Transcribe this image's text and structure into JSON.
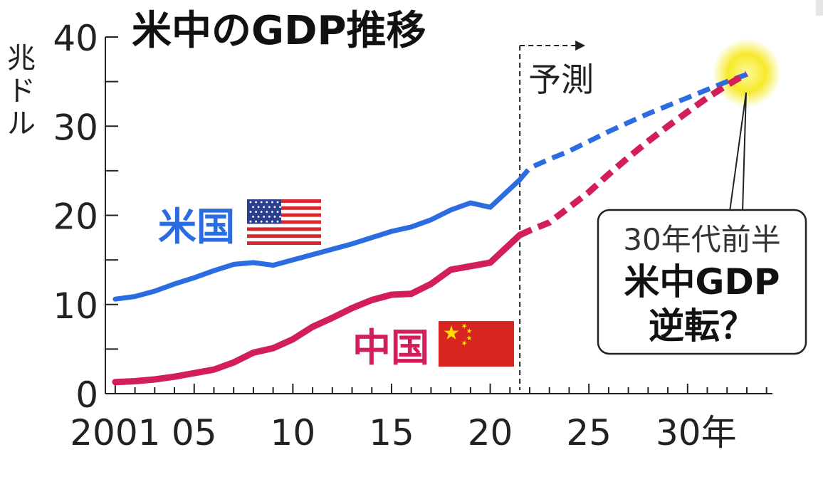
{
  "chart_data": {
    "type": "line",
    "title": "米中のGDP推移",
    "ylabel": "兆ドル",
    "xlabel": "",
    "ylim": [
      0,
      40
    ],
    "xlim": [
      2000.5,
      2034.3
    ],
    "y_ticks": [
      0,
      10,
      20,
      30,
      40
    ],
    "x_ticks": [
      {
        "value": 2001,
        "label": "2001"
      },
      {
        "value": 2005,
        "label": "05"
      },
      {
        "value": 2010,
        "label": "10"
      },
      {
        "value": 2015,
        "label": "15"
      },
      {
        "value": 2020,
        "label": "20"
      },
      {
        "value": 2025,
        "label": "25"
      },
      {
        "value": 2030,
        "label": "30年"
      }
    ],
    "forecast_start": 2021.5,
    "forecast_label": "予測",
    "series": [
      {
        "name": "米国",
        "color": "#2b6de0",
        "flag": "usa-flag",
        "x": [
          2001,
          2002,
          2003,
          2004,
          2005,
          2006,
          2007,
          2008,
          2009,
          2010,
          2011,
          2012,
          2013,
          2014,
          2015,
          2016,
          2017,
          2018,
          2019,
          2020,
          2021.5,
          2022,
          2023,
          2024,
          2025,
          2026,
          2027,
          2028,
          2029,
          2030,
          2031,
          2032,
          2033
        ],
        "y": [
          10.6,
          10.9,
          11.5,
          12.3,
          13.0,
          13.8,
          14.5,
          14.7,
          14.4,
          15.0,
          15.6,
          16.2,
          16.8,
          17.5,
          18.2,
          18.7,
          19.5,
          20.6,
          21.4,
          20.9,
          24.0,
          25.3,
          26.3,
          27.2,
          28.3,
          29.4,
          30.4,
          31.4,
          32.3,
          33.2,
          34.1,
          35.0,
          35.8
        ],
        "forecast_from_index": 20
      },
      {
        "name": "中国",
        "color": "#d21f5a",
        "flag": "china-flag",
        "x": [
          2001,
          2002,
          2003,
          2004,
          2005,
          2006,
          2007,
          2008,
          2009,
          2010,
          2011,
          2012,
          2013,
          2014,
          2015,
          2016,
          2017,
          2018,
          2019,
          2020,
          2021.5,
          2022,
          2023,
          2024,
          2025,
          2026,
          2027,
          2028,
          2029,
          2030,
          2031,
          2032,
          2033
        ],
        "y": [
          1.3,
          1.4,
          1.6,
          1.9,
          2.3,
          2.7,
          3.5,
          4.6,
          5.1,
          6.1,
          7.5,
          8.5,
          9.6,
          10.5,
          11.1,
          11.2,
          12.3,
          13.9,
          14.3,
          14.7,
          17.8,
          18.3,
          19.2,
          20.9,
          22.6,
          24.6,
          26.5,
          28.3,
          30.0,
          31.6,
          33.2,
          34.6,
          35.9
        ],
        "forecast_from_index": 20
      }
    ],
    "annotation": {
      "lines": [
        "30年代前半",
        "米中GDP",
        "逆転？"
      ],
      "highlight_color": "#f5ea2a"
    }
  }
}
